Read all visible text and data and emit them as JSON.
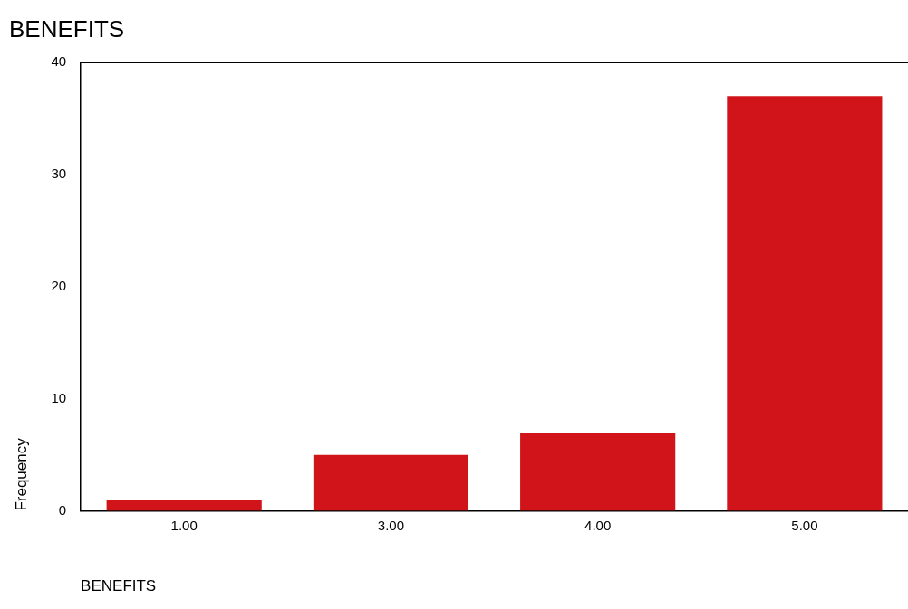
{
  "chart_data": {
    "type": "bar",
    "title": "BENEFITS",
    "xlabel": "BENEFITS",
    "ylabel": "Frequency",
    "categories": [
      "1.00",
      "3.00",
      "4.00",
      "5.00"
    ],
    "values": [
      1,
      5,
      7,
      37
    ],
    "color": "#d0141a",
    "ylim": [
      0,
      40
    ],
    "yticks": [
      0,
      10,
      20,
      30,
      40
    ],
    "grid": false,
    "legend": false
  }
}
